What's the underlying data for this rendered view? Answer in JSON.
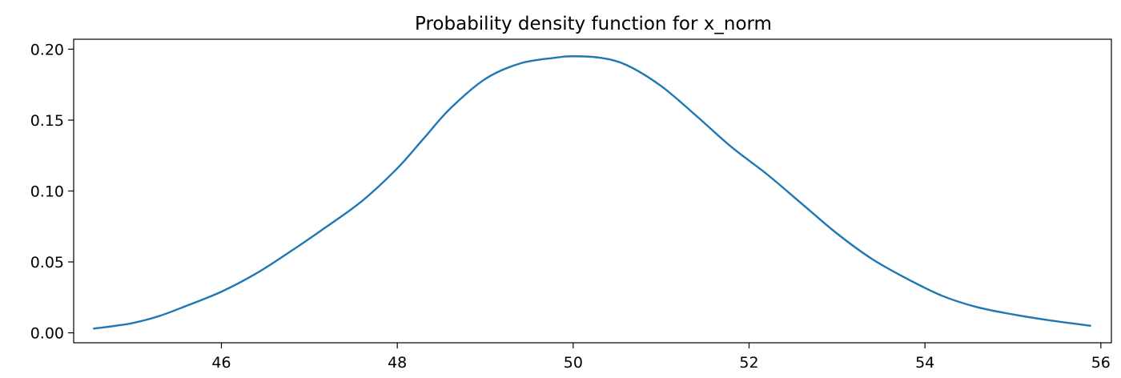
{
  "chart_data": {
    "type": "line",
    "title": "Probability density function for x_norm",
    "xlabel": "",
    "ylabel": "",
    "xlim": [
      44.32,
      56.12
    ],
    "ylim": [
      -0.007,
      0.207
    ],
    "grid": false,
    "legend": "none",
    "x_ticks": [
      46,
      48,
      50,
      52,
      54,
      56
    ],
    "x_tick_labels": [
      "46",
      "48",
      "50",
      "52",
      "54",
      "56"
    ],
    "y_ticks": [
      0.0,
      0.05,
      0.1,
      0.15,
      0.2
    ],
    "y_tick_labels": [
      "0.00",
      "0.05",
      "0.10",
      "0.15",
      "0.20"
    ],
    "series": [
      {
        "name": "x_norm",
        "color": "#1f77b4",
        "x": [
          44.55,
          44.8,
          45.0,
          45.3,
          45.6,
          46.0,
          46.4,
          46.8,
          47.2,
          47.6,
          48.0,
          48.3,
          48.6,
          49.0,
          49.4,
          49.8,
          50.0,
          50.3,
          50.6,
          51.0,
          51.4,
          51.8,
          52.2,
          52.6,
          53.0,
          53.4,
          53.8,
          54.2,
          54.6,
          55.0,
          55.4,
          55.88
        ],
        "y": [
          0.003,
          0.005,
          0.007,
          0.012,
          0.019,
          0.029,
          0.042,
          0.058,
          0.075,
          0.093,
          0.116,
          0.137,
          0.158,
          0.179,
          0.19,
          0.194,
          0.195,
          0.194,
          0.189,
          0.174,
          0.153,
          0.131,
          0.112,
          0.091,
          0.07,
          0.052,
          0.038,
          0.026,
          0.018,
          0.013,
          0.009,
          0.005
        ]
      }
    ]
  }
}
